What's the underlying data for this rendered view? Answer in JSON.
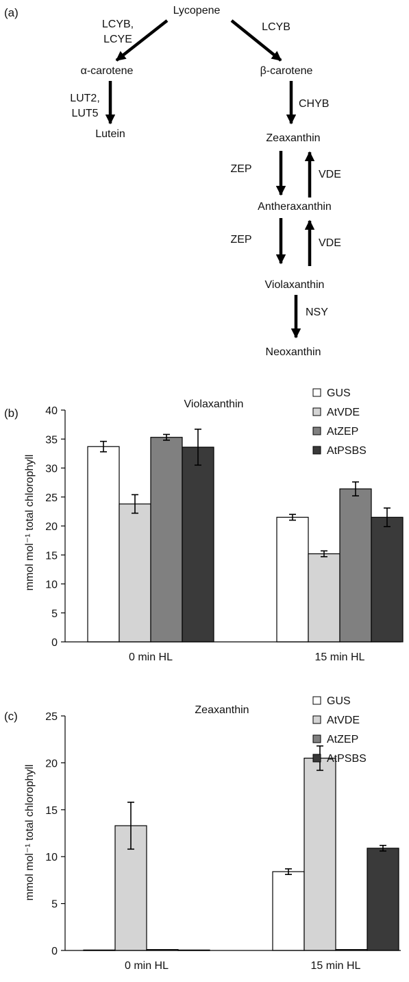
{
  "panel_a": {
    "label": "(a)",
    "nodes": {
      "lycopene": "Lycopene",
      "alpha_carotene": "α-carotene",
      "beta_carotene": "β-carotene",
      "lutein": "Lutein",
      "zeaxanthin": "Zeaxanthin",
      "antheraxanthin": "Antheraxanthin",
      "violaxanthin": "Violaxanthin",
      "neoxanthin": "Neoxanthin"
    },
    "enzymes": {
      "lcyb_lcye_1": "LCYB,",
      "lcyb_lcye_2": "LCYE",
      "lcyb": "LCYB",
      "lut_1": "LUT2,",
      "lut_2": "LUT5",
      "chyb": "CHYB",
      "zep_1": "ZEP",
      "vde_1": "VDE",
      "zep_2": "ZEP",
      "vde_2": "VDE",
      "nsy": "NSY"
    }
  },
  "colors": {
    "GUS": "#ffffff",
    "AtVDE": "#d4d4d4",
    "AtZEP": "#808080",
    "AtPSBS": "#3a3a3a"
  },
  "chart_data": [
    {
      "panel": "(b)",
      "type": "bar",
      "title": "Violaxanthin",
      "ylabel": "mmol mol⁻¹ total chlorophyll",
      "ylim": [
        0,
        40
      ],
      "yticks": [
        "0",
        "5",
        "10",
        "15",
        "20",
        "25",
        "30",
        "35",
        "40"
      ],
      "categories": [
        "0 min HL",
        "15 min HL"
      ],
      "legend_position": "top-right",
      "series": [
        {
          "name": "GUS",
          "values": [
            33.7,
            21.5
          ],
          "errors": [
            0.9,
            0.5
          ]
        },
        {
          "name": "AtVDE",
          "values": [
            23.8,
            15.2
          ],
          "errors": [
            1.6,
            0.5
          ]
        },
        {
          "name": "AtZEP",
          "values": [
            35.3,
            26.4
          ],
          "errors": [
            0.5,
            1.2
          ]
        },
        {
          "name": "AtPSBS",
          "values": [
            33.6,
            21.5
          ],
          "errors": [
            3.1,
            1.6
          ]
        }
      ]
    },
    {
      "panel": "(c)",
      "type": "bar",
      "title": "Zeaxanthin",
      "ylabel": "mmol mol⁻¹ total chlorophyll",
      "ylim": [
        0,
        25
      ],
      "yticks": [
        "0",
        "5",
        "10",
        "15",
        "20",
        "25"
      ],
      "categories": [
        "0 min HL",
        "15 min HL"
      ],
      "legend_position": "top-right",
      "series": [
        {
          "name": "GUS",
          "values": [
            0.05,
            8.4
          ],
          "errors": [
            0,
            0.3
          ]
        },
        {
          "name": "AtVDE",
          "values": [
            13.3,
            20.5
          ],
          "errors": [
            2.5,
            1.3
          ]
        },
        {
          "name": "AtZEP",
          "values": [
            0.1,
            0.1
          ],
          "errors": [
            0,
            0
          ]
        },
        {
          "name": "AtPSBS",
          "values": [
            0.05,
            10.9
          ],
          "errors": [
            0,
            0.3
          ]
        }
      ]
    }
  ]
}
